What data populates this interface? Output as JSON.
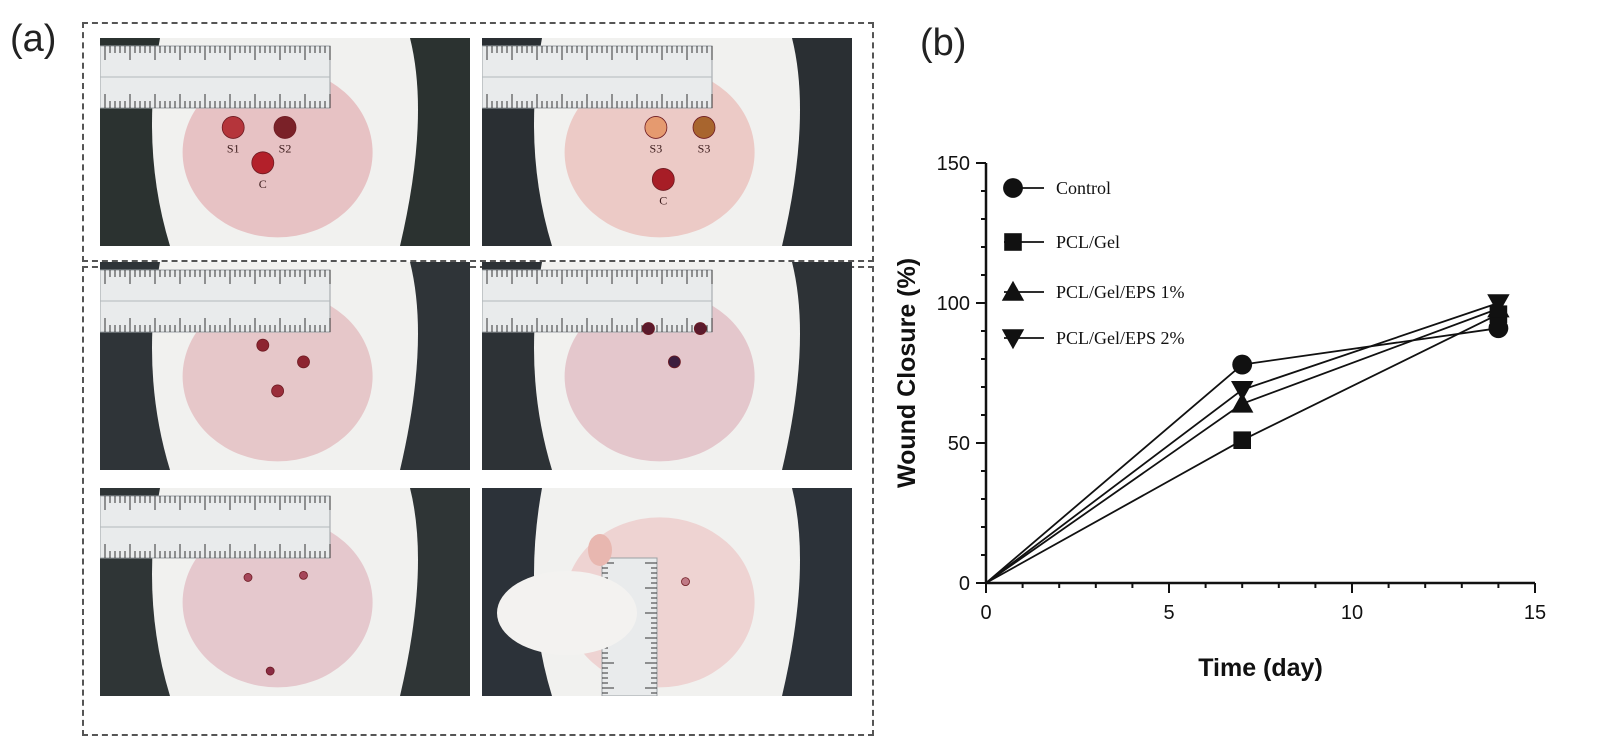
{
  "panels": {
    "a_label": "(a)",
    "b_label": "(b)"
  },
  "photos": [
    {
      "name": "photo-day0-left",
      "skin": "#e7c2c4",
      "bg": "#2b3230",
      "wounds": [
        {
          "label": "S1",
          "color": "#b5353b",
          "fx": 0.36,
          "fy": 0.43
        },
        {
          "label": "S2",
          "color": "#7a2128",
          "fx": 0.5,
          "fy": 0.43
        },
        {
          "label": "C",
          "color": "#b3202a",
          "fx": 0.44,
          "fy": 0.6
        }
      ]
    },
    {
      "name": "photo-day0-right",
      "skin": "#eccac6",
      "bg": "#2a2f33",
      "wounds": [
        {
          "label": "S3",
          "color": "#e59a6f",
          "fx": 0.47,
          "fy": 0.43
        },
        {
          "label": "S3",
          "color": "#a8652e",
          "fx": 0.6,
          "fy": 0.43
        },
        {
          "label": "C",
          "color": "#a71d26",
          "fx": 0.49,
          "fy": 0.68
        }
      ]
    },
    {
      "name": "photo-day7-left",
      "skin": "#e6c7c9",
      "bg": "#2f3438",
      "wounds": [
        {
          "label": "",
          "color": "#8d2430",
          "fx": 0.44,
          "fy": 0.4
        },
        {
          "label": "",
          "color": "#8d2430",
          "fx": 0.55,
          "fy": 0.48
        },
        {
          "label": "",
          "color": "#9a2d3a",
          "fx": 0.48,
          "fy": 0.62
        }
      ]
    },
    {
      "name": "photo-day7-right",
      "skin": "#e4c7cc",
      "bg": "#2d3236",
      "wounds": [
        {
          "label": "",
          "color": "#5b1a2c",
          "fx": 0.45,
          "fy": 0.32
        },
        {
          "label": "",
          "color": "#5b1a2c",
          "fx": 0.59,
          "fy": 0.32
        },
        {
          "label": "",
          "color": "#3c1e3e",
          "fx": 0.52,
          "fy": 0.48
        }
      ]
    },
    {
      "name": "photo-day14-left",
      "skin": "#e5c8cd",
      "bg": "#2f3536",
      "wounds": [
        {
          "label": "",
          "color": "#a5465a",
          "fx": 0.4,
          "fy": 0.43
        },
        {
          "label": "",
          "color": "#a5465a",
          "fx": 0.55,
          "fy": 0.42
        },
        {
          "label": "",
          "color": "#8a2c44",
          "fx": 0.46,
          "fy": 0.88
        }
      ]
    },
    {
      "name": "photo-day14-right",
      "skin": "#eed3d2",
      "bg": "#2c3239",
      "wounds": [
        {
          "label": "",
          "color": "#c07a86",
          "fx": 0.55,
          "fy": 0.45
        }
      ]
    }
  ],
  "chart_data": {
    "type": "line",
    "title": "",
    "xlabel": "Time (day)",
    "ylabel": "Wound Closure (%)",
    "xlim": [
      0,
      15
    ],
    "ylim": [
      0,
      150
    ],
    "xticks": [
      0,
      5,
      10,
      15
    ],
    "yticks": [
      0,
      50,
      100,
      150
    ],
    "grid": false,
    "legend_position": "top-left",
    "x": [
      0,
      7,
      14
    ],
    "series": [
      {
        "name": "Control",
        "marker": "circle",
        "values": [
          0,
          78,
          91
        ]
      },
      {
        "name": "PCL/Gel",
        "marker": "square",
        "values": [
          0,
          51,
          96
        ]
      },
      {
        "name": "PCL/Gel/EPS 1%",
        "marker": "triangle-up",
        "values": [
          0,
          64,
          98
        ]
      },
      {
        "name": "PCL/Gel/EPS 2%",
        "marker": "triangle-down",
        "values": [
          0,
          69,
          100
        ]
      }
    ]
  }
}
